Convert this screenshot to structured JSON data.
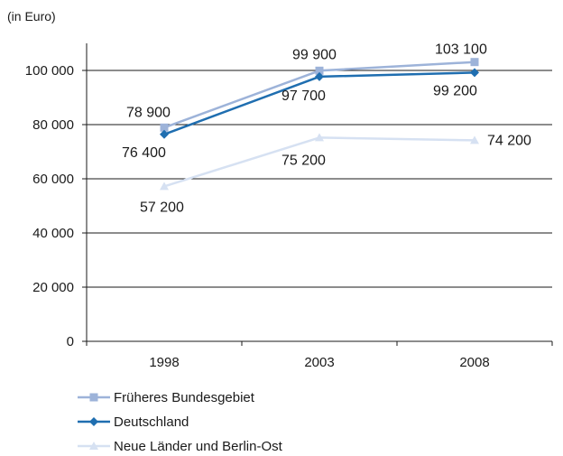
{
  "chart_data": {
    "type": "line",
    "unit_label": "(in Euro)",
    "categories": [
      "1998",
      "2003",
      "2008"
    ],
    "ylim": [
      0,
      100000
    ],
    "y_ticks": [
      {
        "value": 0,
        "label": "0"
      },
      {
        "value": 20000,
        "label": "20 000"
      },
      {
        "value": 40000,
        "label": "40 000"
      },
      {
        "value": 60000,
        "label": "60 000"
      },
      {
        "value": 80000,
        "label": "80 000"
      },
      {
        "value": 100000,
        "label": "100 000"
      }
    ],
    "grid": "horizontal",
    "legend_position": "bottom",
    "series": [
      {
        "name": "Früheres Bundesgebiet",
        "values": [
          78900,
          99900,
          103100
        ],
        "labels": [
          "78 900",
          "99 900",
          "103 100"
        ],
        "color": "#9db3d9",
        "marker": "square"
      },
      {
        "name": "Deutschland",
        "values": [
          76400,
          97700,
          99200
        ],
        "labels": [
          "76 400",
          "97 700",
          "99 200"
        ],
        "color": "#1f6eb0",
        "marker": "diamond"
      },
      {
        "name": "Neue Länder und Berlin-Ost",
        "values": [
          57200,
          75200,
          74200
        ],
        "labels": [
          "57 200",
          "75 200",
          "74 200"
        ],
        "color": "#d6e1f2",
        "marker": "triangle"
      }
    ]
  }
}
